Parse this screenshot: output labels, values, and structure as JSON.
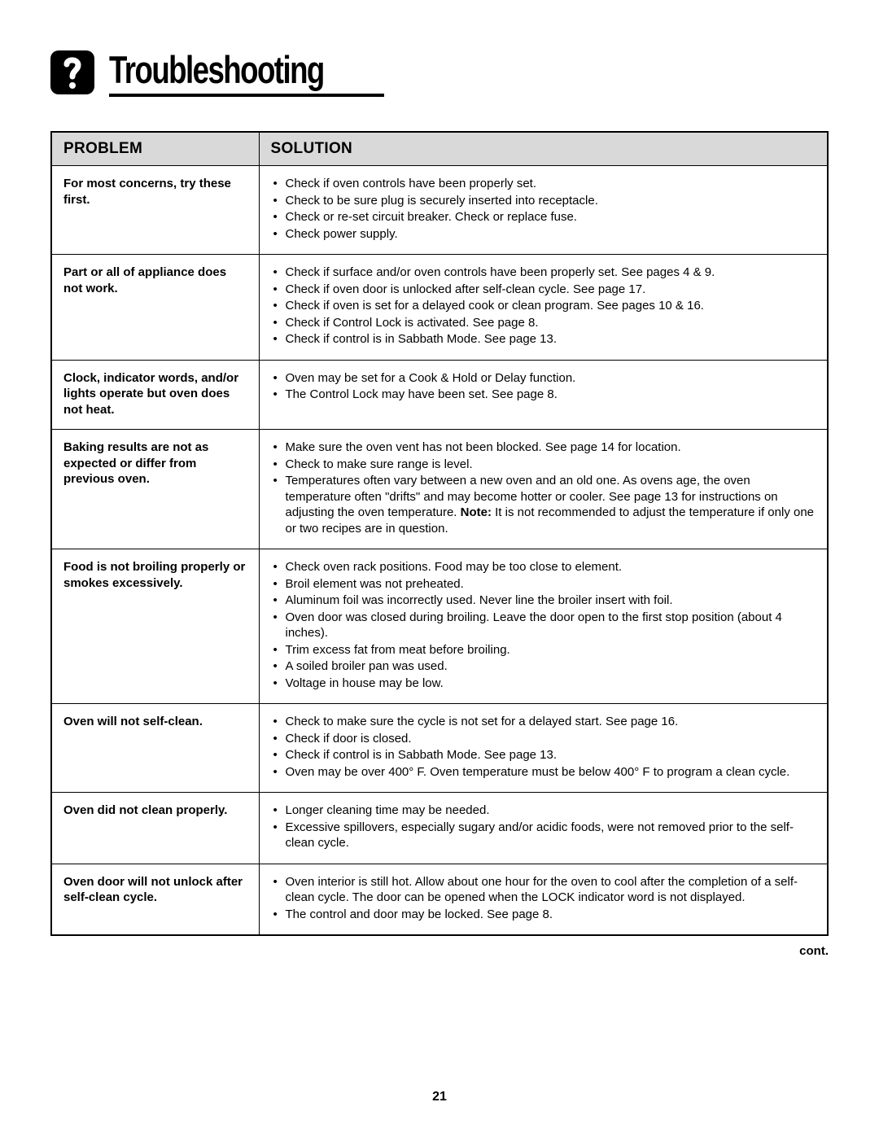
{
  "title": "Troubleshooting",
  "columns": {
    "problem": "PROBLEM",
    "solution": "SOLUTION"
  },
  "rows": [
    {
      "problem": "For most concerns, try these first.",
      "solutions": [
        "Check if oven controls have been properly set.",
        "Check to be sure plug is securely inserted into receptacle.",
        "Check or re-set circuit breaker.  Check or replace fuse.",
        "Check power supply."
      ]
    },
    {
      "problem": "Part or all of appliance does not work.",
      "solutions": [
        "Check if surface and/or oven controls have been properly set. See pages 4 & 9.",
        "Check if oven door is unlocked after self-clean cycle.  See page 17.",
        "Check if oven is set for a delayed cook or clean program. See pages 10 & 16.",
        "Check if Control Lock is activated. See page 8.",
        "Check if control is in Sabbath Mode. See page 13."
      ]
    },
    {
      "problem": "Clock, indicator words, and/or lights operate but oven does not heat.",
      "solutions": [
        "Oven may be set for a Cook & Hold or Delay function.",
        "The Control Lock may have been set. See page 8."
      ]
    },
    {
      "problem": "Baking results are not as expected or differ from previous oven.",
      "solutions": [
        "Make sure the oven vent has not been blocked.  See page 14 for location.",
        "Check to make sure range is level.",
        "Temperatures often vary between a new oven and an old one. As ovens age, the oven temperature often \"drifts\" and may become hotter or cooler.  See page 13 for instructions on adjusting the oven temperature.  <span class=\"note-inline\">Note:</span>  It is not recommended to adjust the temperature if only one or two recipes are in question."
      ]
    },
    {
      "problem": "Food is not broiling properly or smokes excessively.",
      "solutions": [
        "Check oven rack positions. Food may be too close to element.",
        "Broil element was not preheated.",
        "Aluminum foil was incorrectly used. Never line the broiler insert with foil.",
        "Oven door was closed during broiling.  Leave the door open to the first stop position (about 4 inches).",
        "Trim excess fat from meat before broiling.",
        "A soiled broiler pan was used.",
        "Voltage in house may be low."
      ]
    },
    {
      "problem": "Oven will not self-clean.",
      "solutions": [
        "Check to make sure the cycle is not set for a delayed start. See page 16.",
        "Check if door is closed.",
        "Check if control is in Sabbath Mode. See page 13.",
        "Oven may be over 400° F. Oven temperature must be below 400° F to program a clean cycle."
      ]
    },
    {
      "problem": "Oven did not clean properly.",
      "solutions": [
        "Longer cleaning time may be needed.",
        "Excessive spillovers, especially sugary and/or acidic foods, were not removed prior to the self-clean cycle."
      ]
    },
    {
      "problem": "Oven door will not unlock after self-clean cycle.",
      "solutions": [
        "Oven interior is still hot.  Allow about one hour for the oven to cool after the completion of a self-clean cycle. The door can be opened when the LOCK indicator word is not displayed.",
        "The control and door may be locked. See page 8."
      ]
    }
  ],
  "cont_label": "cont.",
  "page_number": "21"
}
